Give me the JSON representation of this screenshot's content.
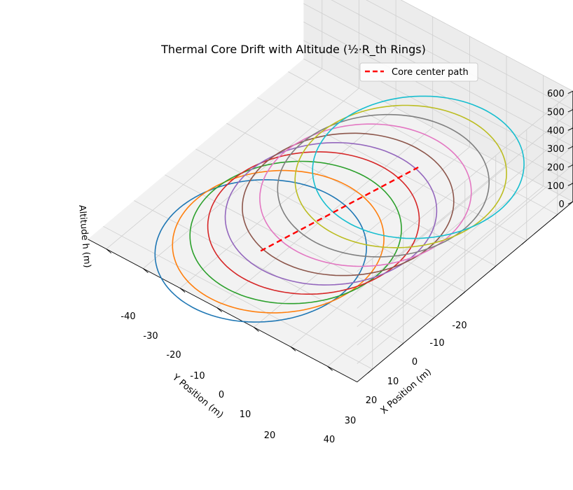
{
  "chart_data": {
    "type": "line",
    "title": "Thermal Core Drift with Altitude (½·R_th Rings)",
    "xlabel": "X Position (m)",
    "ylabel": "Y Position (m)",
    "zlabel": "Altitude h (m)",
    "xlim": [
      -28,
      45
    ],
    "ylim": [
      -45,
      25
    ],
    "zlim": [
      0,
      600
    ],
    "x_ticks": [
      -20,
      -10,
      0,
      10,
      20,
      30,
      40
    ],
    "y_ticks": [
      -40,
      -30,
      -20,
      -10,
      0,
      10,
      20
    ],
    "z_ticks": [
      0,
      100,
      200,
      300,
      400,
      500,
      600
    ],
    "grid": true,
    "legend": {
      "position": "top-right",
      "entries": [
        "Core center path"
      ]
    },
    "core_path": {
      "name": "Core center path",
      "color": "#ff0000",
      "style": "dashed",
      "points": [
        [
          14,
          6,
          0
        ],
        [
          -12,
          -14,
          450
        ]
      ]
    },
    "rings": [
      {
        "altitude": 0,
        "center_x": 14.0,
        "center_y": 6.0,
        "radius": 22.0,
        "color": "#1f77b4"
      },
      {
        "altitude": 50,
        "center_x": 11.1,
        "center_y": 3.8,
        "radius": 22.0,
        "color": "#ff7f0e"
      },
      {
        "altitude": 100,
        "center_x": 8.2,
        "center_y": 1.6,
        "radius": 22.0,
        "color": "#2ca02c"
      },
      {
        "altitude": 150,
        "center_x": 5.3,
        "center_y": -0.7,
        "radius": 22.0,
        "color": "#d62728"
      },
      {
        "altitude": 200,
        "center_x": 2.4,
        "center_y": -2.9,
        "radius": 22.0,
        "color": "#9467bd"
      },
      {
        "altitude": 250,
        "center_x": -0.4,
        "center_y": -5.1,
        "radius": 22.0,
        "color": "#8c564b"
      },
      {
        "altitude": 300,
        "center_x": -3.3,
        "center_y": -7.3,
        "radius": 22.0,
        "color": "#e377c2"
      },
      {
        "altitude": 350,
        "center_x": -6.2,
        "center_y": -9.6,
        "radius": 22.0,
        "color": "#7f7f7f"
      },
      {
        "altitude": 400,
        "center_x": -9.1,
        "center_y": -11.8,
        "radius": 22.0,
        "color": "#bcbd22"
      },
      {
        "altitude": 450,
        "center_x": -12.0,
        "center_y": -14.0,
        "radius": 22.0,
        "color": "#17becf"
      }
    ]
  }
}
